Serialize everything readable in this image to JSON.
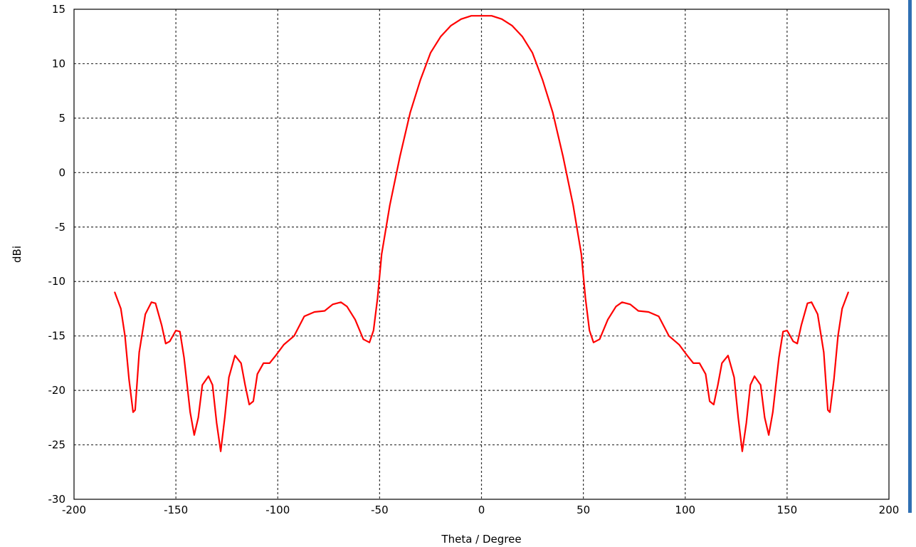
{
  "chart_data": {
    "type": "line",
    "title": "",
    "xlabel": "Theta / Degree",
    "ylabel": "dBi",
    "xlim": [
      -200,
      200
    ],
    "ylim": [
      -30,
      15
    ],
    "x_ticks": [
      -200,
      -150,
      -100,
      -50,
      0,
      50,
      100,
      150,
      200
    ],
    "y_ticks": [
      15,
      10,
      5,
      0,
      -5,
      -10,
      -15,
      -20,
      -25,
      -30
    ],
    "grid": true,
    "grid_style": "dotted",
    "legend": "none",
    "line_color": "#ff0000",
    "series": [
      {
        "x": [
          -180,
          -177,
          -175,
          -173,
          -171,
          -170,
          -168,
          -165,
          -162,
          -160,
          -157,
          -155,
          -153,
          -150,
          -148,
          -146,
          -143,
          -141,
          -139,
          -137,
          -134,
          -132,
          -130,
          -128,
          -126,
          -124,
          -121,
          -118,
          -116,
          -114,
          -112,
          -110,
          -107,
          -104,
          -101,
          -97,
          -92,
          -87,
          -82,
          -77,
          -73,
          -69,
          -66,
          -62,
          -58,
          -55,
          -53,
          -51,
          -49,
          -45,
          -40,
          -35,
          -30,
          -25,
          -20,
          -15,
          -10,
          -5,
          0,
          5,
          10,
          15,
          20,
          25,
          30,
          35,
          40,
          45,
          49,
          51,
          53,
          55,
          58,
          62,
          66,
          69,
          73,
          77,
          82,
          87,
          92,
          97,
          101,
          104,
          107,
          110,
          112,
          114,
          116,
          118,
          121,
          124,
          126,
          128,
          130,
          132,
          134,
          137,
          139,
          141,
          143,
          146,
          148,
          150,
          153,
          155,
          157,
          160,
          162,
          165,
          168,
          170,
          171,
          173,
          175,
          177,
          180
        ],
        "y": [
          -11.0,
          -12.5,
          -15.0,
          -19.0,
          -22.0,
          -21.8,
          -16.5,
          -13.0,
          -11.9,
          -12.0,
          -14.0,
          -15.7,
          -15.5,
          -14.5,
          -14.6,
          -17.0,
          -22.0,
          -24.1,
          -22.5,
          -19.5,
          -18.7,
          -19.5,
          -23.0,
          -25.6,
          -22.5,
          -18.8,
          -16.8,
          -17.5,
          -19.5,
          -21.3,
          -21.0,
          -18.5,
          -17.5,
          -17.5,
          -16.8,
          -15.8,
          -15.0,
          -13.2,
          -12.8,
          -12.7,
          -12.1,
          -11.9,
          -12.3,
          -13.5,
          -15.3,
          -15.6,
          -14.5,
          -11.5,
          -7.5,
          -3.0,
          1.5,
          5.5,
          8.5,
          11.0,
          12.5,
          13.5,
          14.1,
          14.4,
          14.4,
          14.4,
          14.1,
          13.5,
          12.5,
          11.0,
          8.5,
          5.5,
          1.5,
          -3.0,
          -7.5,
          -11.5,
          -14.5,
          -15.6,
          -15.3,
          -13.5,
          -12.3,
          -11.9,
          -12.1,
          -12.7,
          -12.8,
          -13.2,
          -15.0,
          -15.8,
          -16.8,
          -17.5,
          -17.5,
          -18.5,
          -21.0,
          -21.3,
          -19.5,
          -17.5,
          -16.8,
          -18.8,
          -22.5,
          -25.6,
          -23.0,
          -19.5,
          -18.7,
          -19.5,
          -22.5,
          -24.1,
          -22.0,
          -17.0,
          -14.6,
          -14.5,
          -15.5,
          -15.7,
          -14.0,
          -12.0,
          -11.9,
          -13.0,
          -16.5,
          -21.8,
          -22.0,
          -19.0,
          -15.0,
          -12.5,
          -11.0
        ]
      }
    ]
  }
}
